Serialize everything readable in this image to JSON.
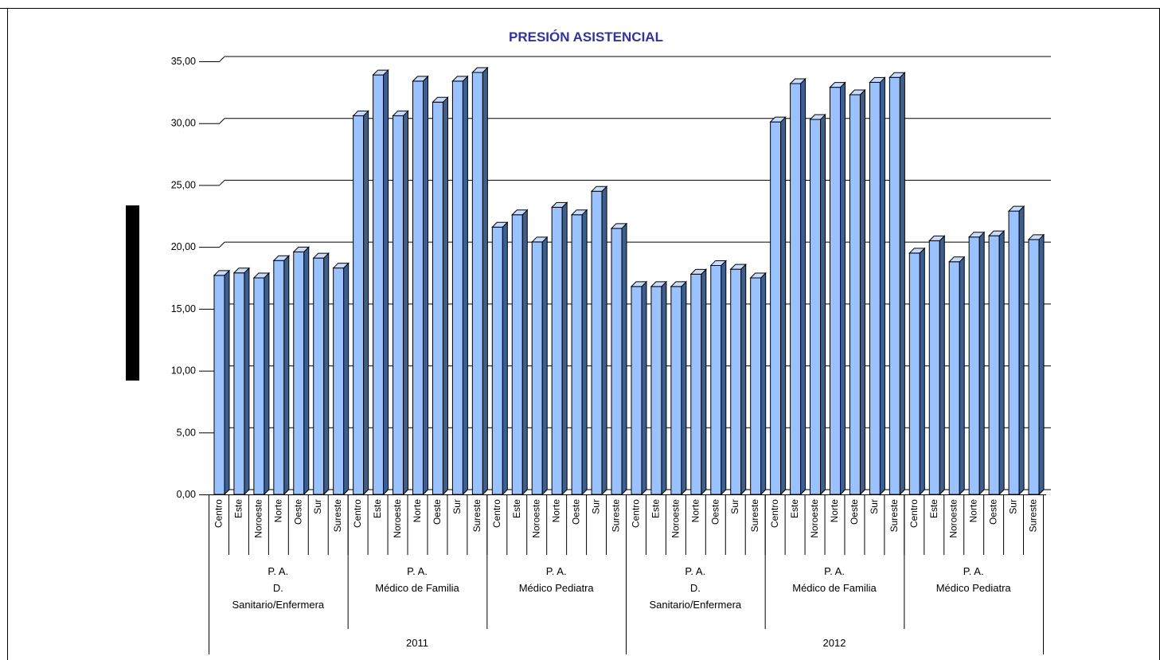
{
  "colors": {
    "title": "#3333a0",
    "bar_front": "#99c2ff",
    "bar_side": "#3d5f8f",
    "bar_top": "#c7dcff",
    "grid": "#000000"
  },
  "chart_data": {
    "type": "bar",
    "title": "PRESIÓN ASISTENCIAL",
    "xlabel": "",
    "ylabel": "",
    "ylim": [
      0,
      35
    ],
    "yticks": [
      "0,00",
      "5,00",
      "10,00",
      "15,00",
      "20,00",
      "25,00",
      "30,00",
      "35,00"
    ],
    "grid": true,
    "categories": [
      "Centro",
      "Este",
      "Noroeste",
      "Norte",
      "Oeste",
      "Sur",
      "Sureste"
    ],
    "years": [
      {
        "label": "2011",
        "groups": [
          {
            "label": [
              "P. A.",
              "D.",
              "Sanitario/Enfermera"
            ],
            "values": [
              17.7,
              17.9,
              17.5,
              18.9,
              19.6,
              19.1,
              18.3
            ]
          },
          {
            "label": [
              "P. A.",
              "Médico de Familia"
            ],
            "values": [
              30.6,
              33.9,
              30.6,
              33.4,
              31.7,
              33.4,
              34.1
            ]
          },
          {
            "label": [
              "P. A.",
              "Médico Pediatra"
            ],
            "values": [
              21.6,
              22.6,
              20.4,
              23.2,
              22.6,
              24.5,
              21.5
            ]
          }
        ]
      },
      {
        "label": "2012",
        "groups": [
          {
            "label": [
              "P. A.",
              "D.",
              "Sanitario/Enfermera"
            ],
            "values": [
              16.8,
              16.8,
              16.8,
              17.8,
              18.5,
              18.2,
              17.5
            ]
          },
          {
            "label": [
              "P. A.",
              "Médico de Familia"
            ],
            "values": [
              30.1,
              33.2,
              30.3,
              32.9,
              32.3,
              33.3,
              33.7
            ]
          },
          {
            "label": [
              "P. A.",
              "Médico Pediatra"
            ],
            "values": [
              19.5,
              20.5,
              18.8,
              20.8,
              20.9,
              22.9,
              20.6
            ]
          }
        ]
      }
    ]
  }
}
